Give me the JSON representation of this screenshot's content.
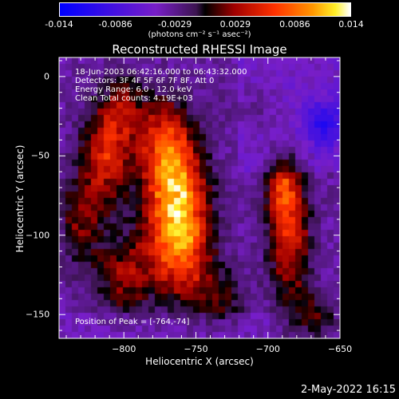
{
  "chart_data": {
    "type": "heatmap",
    "title": "Reconstructed RHESSI Image",
    "xlabel": "Heliocentric X (arcsec)",
    "ylabel": "Heliocentric Y (arcsec)",
    "xlim": [
      -845,
      -650
    ],
    "ylim": [
      -165,
      12
    ],
    "x_ticks": [
      -800,
      -750,
      -700,
      -650
    ],
    "y_ticks": [
      0,
      -50,
      -100,
      -150
    ],
    "colorbar": {
      "label": "(photons cm⁻² s⁻¹ asec⁻²)",
      "range": [
        -0.014,
        0.014
      ],
      "ticks": [
        "-0.014",
        "-0.0086",
        "-0.0029",
        "0.0029",
        "0.0086",
        "0.014"
      ],
      "tick_values": [
        -0.014,
        -0.0086,
        -0.0029,
        0.0029,
        0.0086,
        0.014
      ]
    },
    "annotations": [
      "18-Jun-2003 06:42:16.000 to 06:43:32.000",
      "Detectors: 3F 4F 5F 6F 7F 8F, Att 0",
      "Energy Range: 6.0 - 12.0 keV",
      "Clean    Total counts: 4.19E+03"
    ],
    "peak_text": "Position of Peak = [-764,-74]",
    "peak": {
      "x": -764,
      "y": -74,
      "value": 0.014
    },
    "sources": [
      {
        "x": -764,
        "y": -74,
        "amp": 0.0135,
        "sx": 14,
        "sy": 28
      },
      {
        "x": -760,
        "y": -110,
        "amp": 0.0075,
        "sx": 16,
        "sy": 22
      },
      {
        "x": -775,
        "y": -40,
        "amp": 0.006,
        "sx": 12,
        "sy": 18
      },
      {
        "x": -812,
        "y": -50,
        "amp": 0.0085,
        "sx": 12,
        "sy": 22
      },
      {
        "x": -800,
        "y": -20,
        "amp": 0.005,
        "sx": 10,
        "sy": 14
      },
      {
        "x": -830,
        "y": -90,
        "amp": 0.005,
        "sx": 10,
        "sy": 20
      },
      {
        "x": -800,
        "y": -125,
        "amp": 0.006,
        "sx": 14,
        "sy": 18
      },
      {
        "x": -735,
        "y": -140,
        "amp": 0.004,
        "sx": 14,
        "sy": 12
      },
      {
        "x": -685,
        "y": -100,
        "amp": 0.0085,
        "sx": 10,
        "sy": 28
      },
      {
        "x": -690,
        "y": -70,
        "amp": 0.0065,
        "sx": 8,
        "sy": 14
      },
      {
        "x": -668,
        "y": -150,
        "amp": 0.0045,
        "sx": 10,
        "sy": 10
      },
      {
        "x": -710,
        "y": -20,
        "amp": 0.002,
        "sx": 12,
        "sy": 10
      },
      {
        "x": -660,
        "y": -30,
        "amp": -0.006,
        "sx": 10,
        "sy": 10
      }
    ]
  },
  "footer": {
    "date": "2-May-2022 16:15"
  }
}
